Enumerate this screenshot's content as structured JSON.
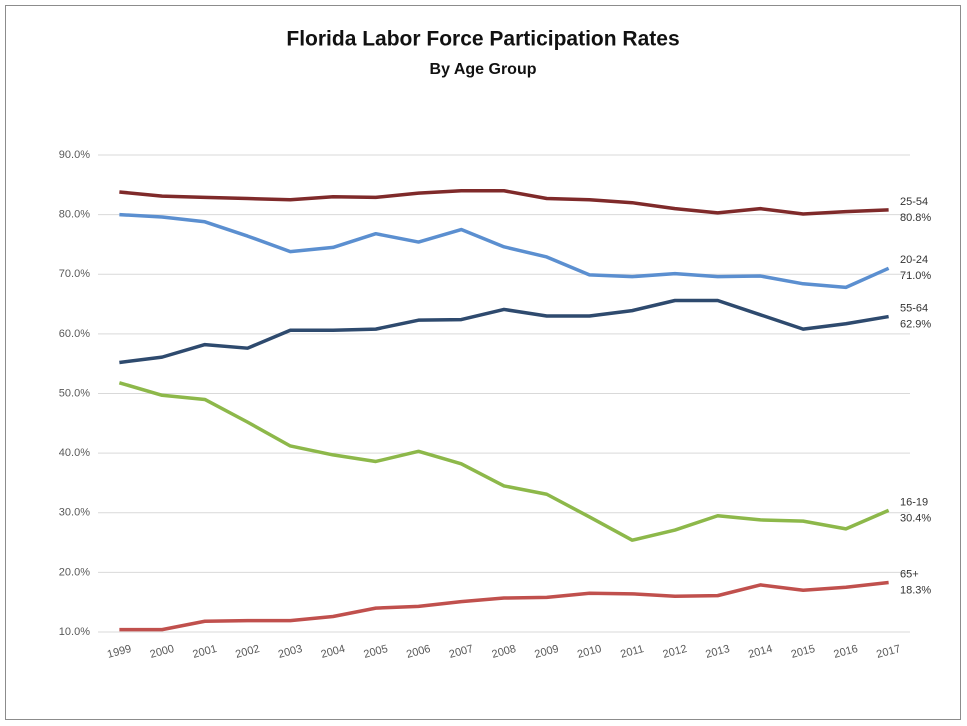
{
  "chart_data": {
    "type": "line",
    "title": "Florida Labor Force Participation Rates",
    "subtitle": "By Age Group",
    "categories": [
      "1999",
      "2000",
      "2001",
      "2002",
      "2003",
      "2004",
      "2005",
      "2006",
      "2007",
      "2008",
      "2009",
      "2010",
      "2011",
      "2012",
      "2013",
      "2014",
      "2015",
      "2016",
      "2017"
    ],
    "ylim": [
      10,
      90
    ],
    "yticks": [
      {
        "value": 10,
        "label": "10.0%"
      },
      {
        "value": 20,
        "label": "20.0%"
      },
      {
        "value": 30,
        "label": "30.0%"
      },
      {
        "value": 40,
        "label": "40.0%"
      },
      {
        "value": 50,
        "label": "50.0%"
      },
      {
        "value": 60,
        "label": "60.0%"
      },
      {
        "value": 70,
        "label": "70.0%"
      },
      {
        "value": 80,
        "label": "80.0%"
      },
      {
        "value": 90,
        "label": "90.0%"
      }
    ],
    "grid": true,
    "series": [
      {
        "name": "25-54",
        "color": "#7f2a2a",
        "values": [
          83.8,
          83.1,
          82.9,
          82.7,
          82.5,
          83.0,
          82.9,
          83.6,
          84.0,
          84.0,
          82.7,
          82.5,
          82.0,
          81.0,
          80.3,
          81.0,
          80.1,
          80.5,
          80.8
        ],
        "value_labels": [
          null,
          null,
          null,
          null,
          null,
          null,
          null,
          null,
          null,
          null,
          null,
          null,
          null,
          null,
          null,
          null,
          null,
          null,
          "80.8%"
        ]
      },
      {
        "name": "20-24",
        "color": "#5b8fd0",
        "values": [
          80.0,
          79.6,
          78.8,
          76.4,
          73.8,
          74.5,
          76.8,
          75.4,
          77.5,
          74.6,
          72.9,
          69.9,
          69.6,
          70.1,
          69.6,
          69.7,
          68.4,
          67.8,
          71.0
        ],
        "value_labels": [
          null,
          null,
          null,
          null,
          null,
          null,
          null,
          null,
          null,
          null,
          null,
          null,
          null,
          null,
          null,
          null,
          null,
          null,
          "71.0%"
        ]
      },
      {
        "name": "55-64",
        "color": "#2e4a6e",
        "values": [
          55.2,
          56.1,
          58.2,
          57.6,
          60.6,
          60.6,
          60.8,
          62.3,
          62.4,
          64.1,
          63.0,
          63.0,
          63.9,
          65.6,
          65.6,
          63.2,
          60.8,
          61.7,
          62.9
        ],
        "value_labels": [
          null,
          null,
          null,
          null,
          null,
          null,
          null,
          null,
          null,
          null,
          null,
          null,
          null,
          null,
          null,
          null,
          null,
          null,
          "62.9%"
        ]
      },
      {
        "name": "16-19",
        "color": "#8db84a",
        "values": [
          51.8,
          49.7,
          49.0,
          45.2,
          41.2,
          39.7,
          38.6,
          40.3,
          38.2,
          34.5,
          33.1,
          29.3,
          25.4,
          27.1,
          29.5,
          28.8,
          28.6,
          27.3,
          30.4
        ],
        "value_labels": [
          null,
          null,
          null,
          null,
          null,
          null,
          null,
          null,
          null,
          null,
          null,
          null,
          null,
          null,
          null,
          null,
          null,
          null,
          "30.4%"
        ]
      },
      {
        "name": "65+",
        "color": "#c0504d",
        "values": [
          10.4,
          10.4,
          11.8,
          11.9,
          11.9,
          12.6,
          14.0,
          14.3,
          15.1,
          15.7,
          15.8,
          16.5,
          16.4,
          16.0,
          16.1,
          17.9,
          17.0,
          17.5,
          18.3
        ],
        "value_labels": [
          null,
          null,
          null,
          null,
          null,
          null,
          null,
          null,
          null,
          null,
          null,
          null,
          null,
          null,
          null,
          null,
          null,
          null,
          "18.3%"
        ]
      }
    ]
  }
}
